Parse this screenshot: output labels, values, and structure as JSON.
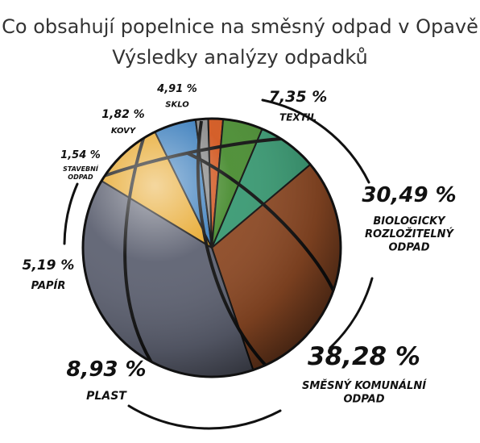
{
  "title": "Co obsahují popelnice na směsný odpad v Opavě",
  "subtitle": "Výsledky analýzy odpadků",
  "chart_data": {
    "type": "pie",
    "title": "Co obsahují popelnice na směsný odpad v Opavě",
    "subtitle": "Výsledky analýzy odpadků",
    "slices": [
      {
        "value_label": "7,35 %",
        "name_lines": [
          "TEXTIL"
        ],
        "value": 7.35,
        "color": "#3a9a73"
      },
      {
        "value_label": "30,49 %",
        "name_lines": [
          "BIOLOGICKY",
          "ROZLOŽITELNÝ",
          "ODPAD"
        ],
        "value": 30.49,
        "color": "#8e4a25"
      },
      {
        "value_label": "38,28 %",
        "name_lines": [
          "SMĚSNÝ KOMUNÁLNÍ",
          "ODPAD"
        ],
        "value": 38.28,
        "color": "#5e6272"
      },
      {
        "value_label": "8,93 %",
        "name_lines": [
          "PLAST"
        ],
        "value": 8.93,
        "color": "#e7a72a"
      },
      {
        "value_label": "5,19 %",
        "name_lines": [
          "PAPÍR"
        ],
        "value": 5.19,
        "color": "#3d7fbd"
      },
      {
        "value_label": "1,54 %",
        "name_lines": [
          "STAVEBNÍ",
          "ODPAD"
        ],
        "value": 1.54,
        "color": "#8c8c8c"
      },
      {
        "value_label": "1,82 %",
        "name_lines": [
          "KOVY"
        ],
        "value": 1.82,
        "color": "#d2571f"
      },
      {
        "value_label": "4,91 %",
        "name_lines": [
          "SKLO"
        ],
        "value": 4.91,
        "color": "#4a8d32"
      }
    ]
  }
}
